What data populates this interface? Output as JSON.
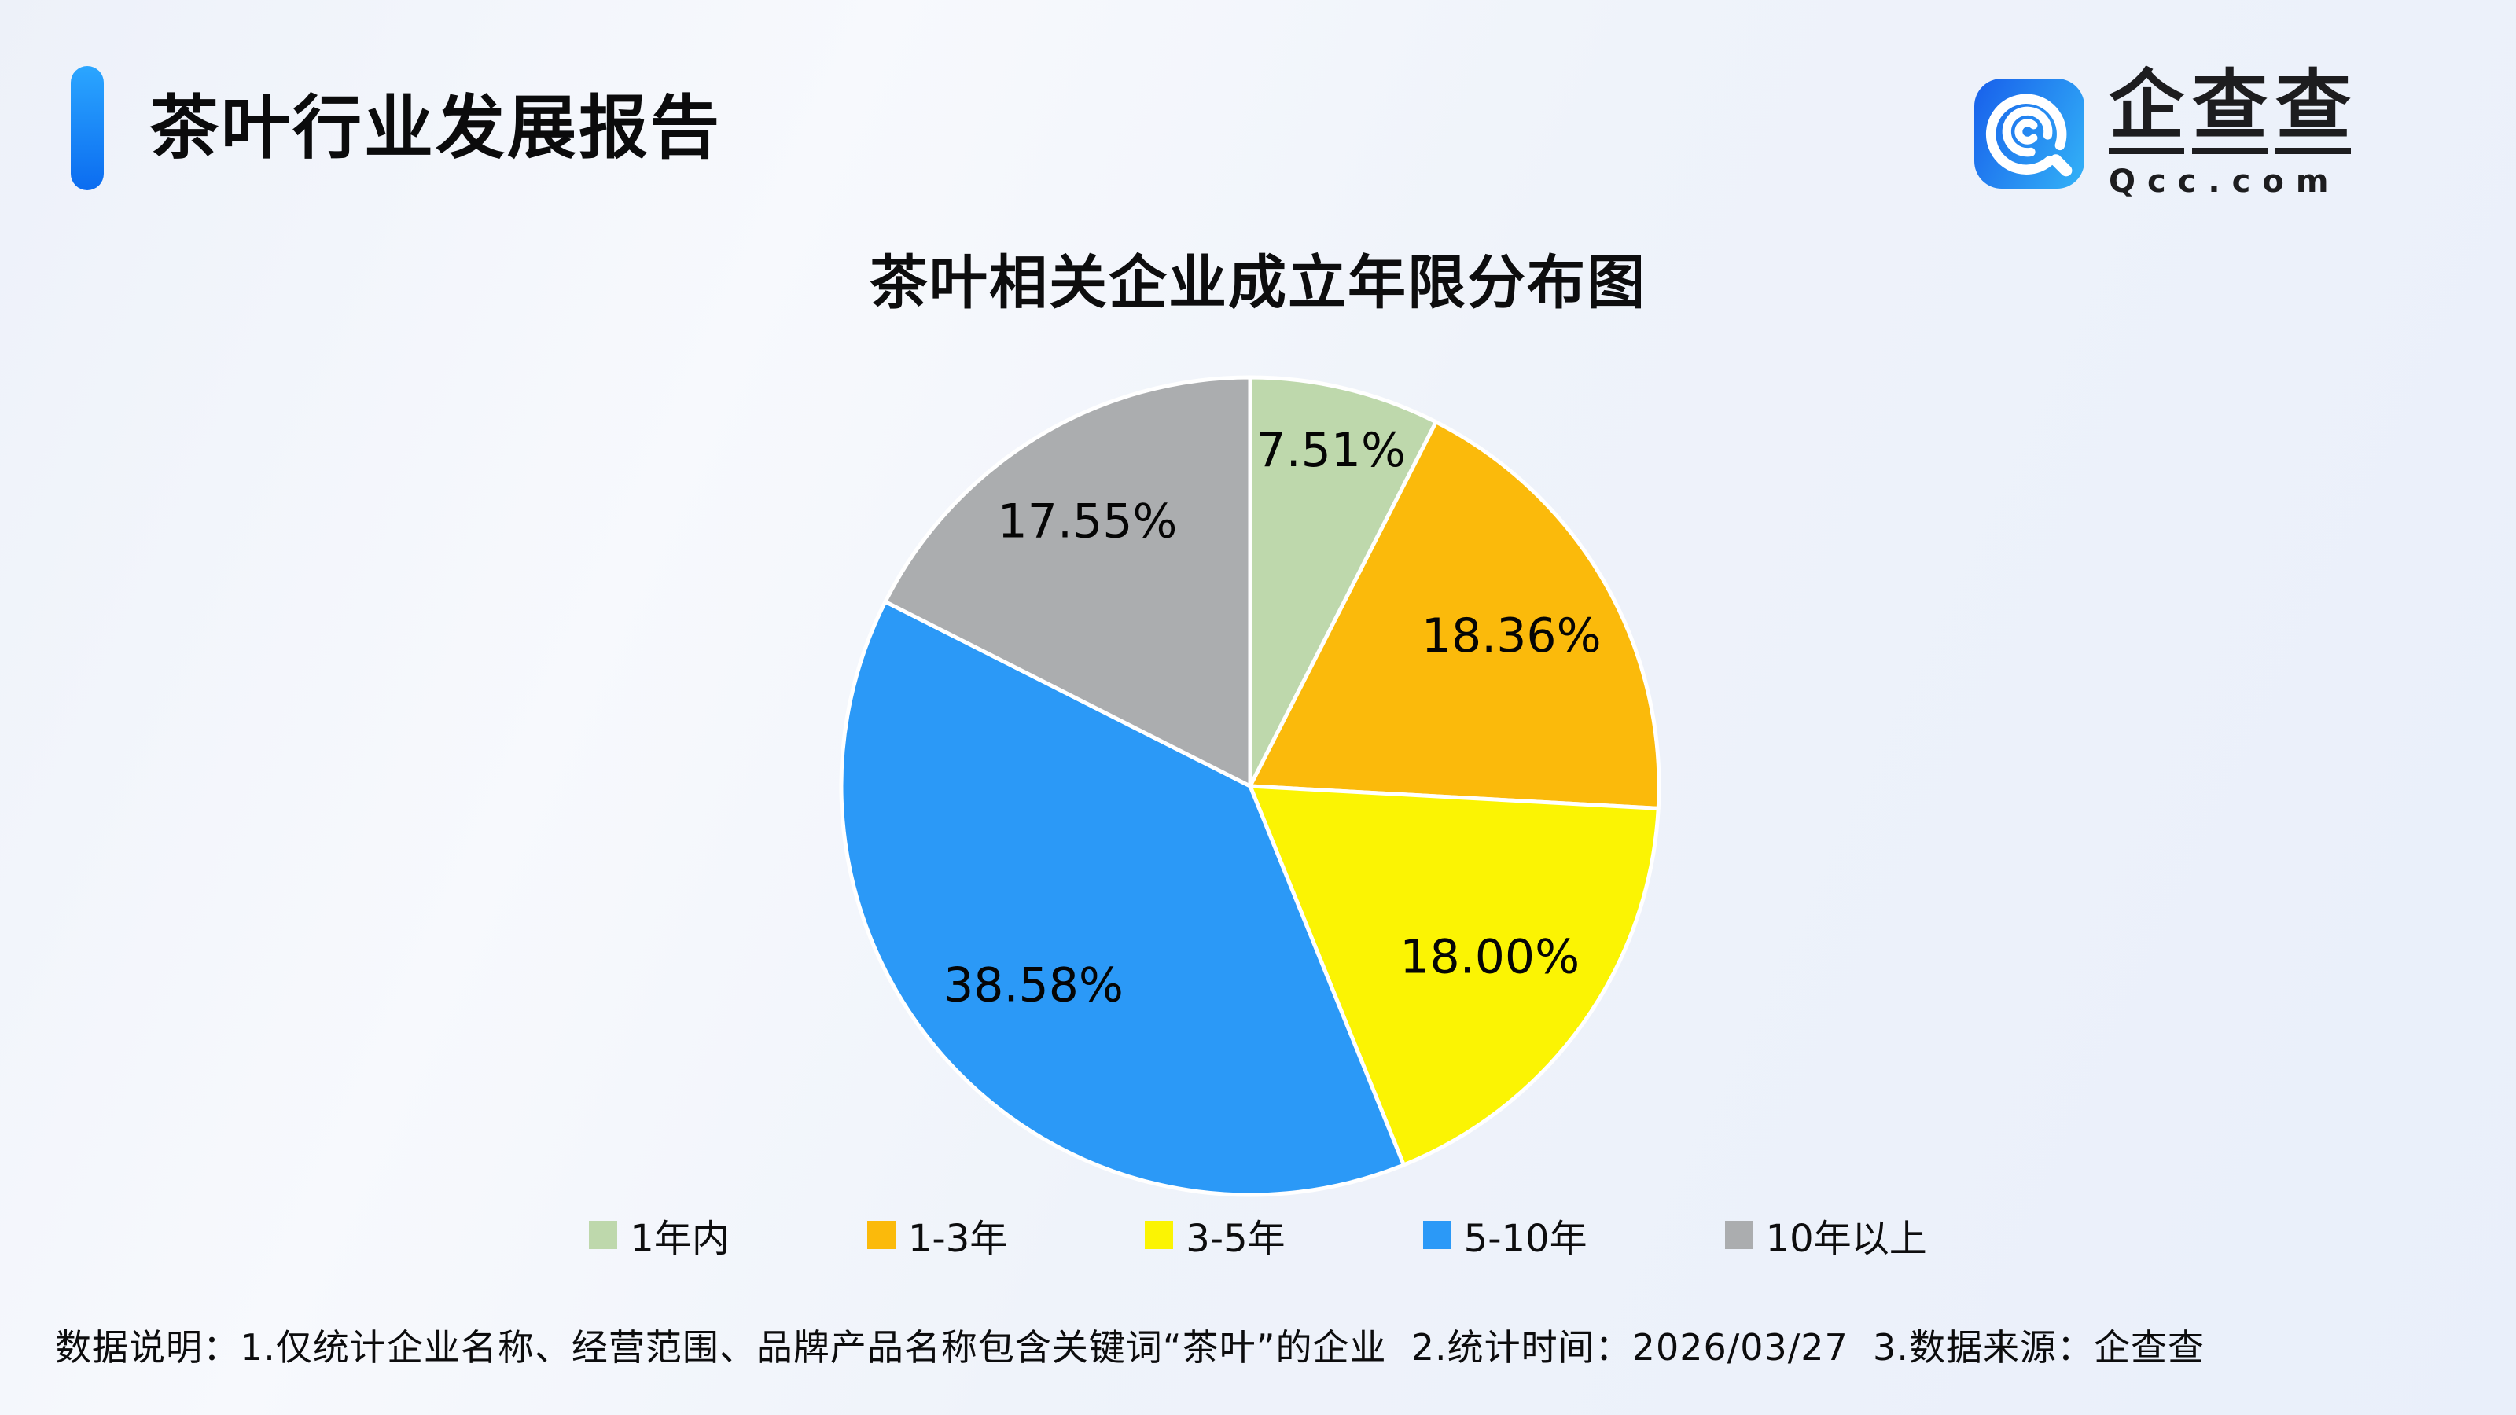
{
  "page": {
    "background_color": "#eef2fa"
  },
  "header": {
    "title": "茶叶行业发展报告",
    "accent_color": "#0b6cf0",
    "logo": {
      "name": "企查查",
      "domain": "Qcc.com",
      "icon": "qcc-magnifier-icon",
      "icon_gradient": [
        "#1a66ec",
        "#31acf6"
      ]
    }
  },
  "chart": {
    "title": "茶叶相关企业成立年限分布图"
  },
  "chart_data": {
    "type": "pie",
    "title": "茶叶相关企业成立年限分布图",
    "start_angle": "12-o'clock",
    "direction": "clockwise",
    "labels_inside": true,
    "legend_position": "bottom",
    "slice_border_color": "#ffffff",
    "slices": [
      {
        "label": "1年内",
        "value": 7.51,
        "display": "7.51%",
        "color": "#bed8ac"
      },
      {
        "label": "1-3年",
        "value": 18.36,
        "display": "18.36%",
        "color": "#fbba0b"
      },
      {
        "label": "3-5年",
        "value": 18.0,
        "display": "18.00%",
        "color": "#fbf403"
      },
      {
        "label": "5-10年",
        "value": 38.58,
        "display": "38.58%",
        "color": "#2b99f7"
      },
      {
        "label": "10年以上",
        "value": 17.55,
        "display": "17.55%",
        "color": "#abadaf"
      }
    ]
  },
  "footer": {
    "note": "数据说明：1.仅统计企业名称、经营范围、品牌产品名称包含关键词“茶叶”的企业  2.统计时间：2026/03/27  3.数据来源：企查查"
  }
}
